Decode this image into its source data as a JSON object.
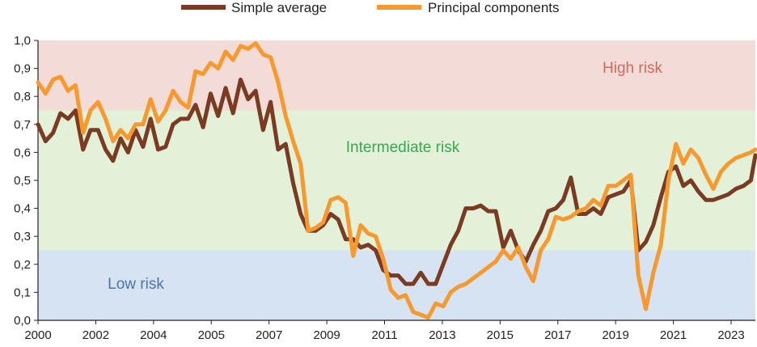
{
  "chart_data": {
    "type": "line",
    "title": "",
    "xlabel": "",
    "ylabel": "",
    "xlim": [
      2000,
      2023.9
    ],
    "ylim": [
      0,
      1
    ],
    "x_ticks": [
      "2000",
      "2002",
      "2004",
      "2005",
      "2007",
      "2009",
      "2011",
      "2013",
      "2015",
      "2017",
      "2019",
      "2021",
      "2023"
    ],
    "y_ticks": [
      "0,0",
      "0,1",
      "0,2",
      "0,3",
      "0,4",
      "0,5",
      "0,6",
      "0,7",
      "0,8",
      "0,9",
      "1,0"
    ],
    "grid": false,
    "legend_position": "top-center",
    "colors": {
      "simple_average": "#7a3b22",
      "principal_components": "#f7992f",
      "zone_low": "#d6e3f3",
      "zone_intermediate": "#e2f1d8",
      "zone_high": "#f3dcd7",
      "label_low": "#4f73a6",
      "label_intermediate": "#3aa84e",
      "label_high": "#cc6b5c",
      "axis": "#222222"
    },
    "zones": [
      {
        "name": "Low risk",
        "from": 0,
        "to": 0.25
      },
      {
        "name": "Intermediate risk",
        "from": 0.25,
        "to": 0.75
      },
      {
        "name": "High risk",
        "from": 0.75,
        "to": 1.0
      }
    ],
    "series": [
      {
        "name": "Simple average",
        "x": [
          2000.0,
          2000.25,
          2000.5,
          2000.75,
          2001.0,
          2001.25,
          2001.5,
          2001.75,
          2002.0,
          2002.25,
          2002.5,
          2002.75,
          2003.0,
          2003.25,
          2003.5,
          2003.75,
          2004.0,
          2004.25,
          2004.5,
          2004.75,
          2005.0,
          2005.25,
          2005.5,
          2005.75,
          2006.0,
          2006.25,
          2006.5,
          2006.75,
          2007.0,
          2007.25,
          2007.5,
          2007.75,
          2008.0,
          2008.25,
          2008.5,
          2008.75,
          2009.0,
          2009.25,
          2009.5,
          2009.75,
          2010.0,
          2010.25,
          2010.5,
          2010.75,
          2011.0,
          2011.25,
          2011.5,
          2011.75,
          2012.0,
          2012.25,
          2012.5,
          2012.75,
          2013.0,
          2013.25,
          2013.5,
          2013.75,
          2014.0,
          2014.25,
          2014.5,
          2014.75,
          2015.0,
          2015.25,
          2015.5,
          2015.75,
          2016.0,
          2016.25,
          2016.5,
          2016.75,
          2017.0,
          2017.25,
          2017.5,
          2017.75,
          2018.0,
          2018.25,
          2018.5,
          2018.75,
          2019.0,
          2019.25,
          2019.5,
          2019.75,
          2020.0,
          2020.25,
          2020.5,
          2020.75,
          2021.0,
          2021.25,
          2021.5,
          2021.75,
          2022.0,
          2022.25,
          2022.5,
          2022.75,
          2023.0,
          2023.25,
          2023.5,
          2023.75,
          2023.9
        ],
        "values": [
          0.7,
          0.64,
          0.67,
          0.74,
          0.72,
          0.75,
          0.61,
          0.68,
          0.68,
          0.61,
          0.57,
          0.65,
          0.6,
          0.68,
          0.62,
          0.72,
          0.61,
          0.62,
          0.7,
          0.72,
          0.72,
          0.77,
          0.69,
          0.81,
          0.73,
          0.83,
          0.74,
          0.86,
          0.79,
          0.82,
          0.68,
          0.78,
          0.61,
          0.63,
          0.49,
          0.38,
          0.32,
          0.32,
          0.34,
          0.38,
          0.36,
          0.29,
          0.29,
          0.26,
          0.27,
          0.25,
          0.18,
          0.16,
          0.16,
          0.13,
          0.13,
          0.17,
          0.13,
          0.13,
          0.2,
          0.27,
          0.32,
          0.4,
          0.4,
          0.41,
          0.39,
          0.39,
          0.26,
          0.32,
          0.25,
          0.21,
          0.27,
          0.32,
          0.39,
          0.4,
          0.43,
          0.51,
          0.38,
          0.38,
          0.4,
          0.38,
          0.44,
          0.45,
          0.46,
          0.5,
          0.25,
          0.28,
          0.34,
          0.44,
          0.53,
          0.55,
          0.48,
          0.5,
          0.46,
          0.43,
          0.43,
          0.44,
          0.45,
          0.47,
          0.48,
          0.5,
          0.59
        ]
      },
      {
        "name": "Principal components",
        "x": [
          2000.0,
          2000.25,
          2000.5,
          2000.75,
          2001.0,
          2001.25,
          2001.5,
          2001.75,
          2002.0,
          2002.25,
          2002.5,
          2002.75,
          2003.0,
          2003.25,
          2003.5,
          2003.75,
          2004.0,
          2004.25,
          2004.5,
          2004.75,
          2005.0,
          2005.25,
          2005.5,
          2005.75,
          2006.0,
          2006.25,
          2006.5,
          2006.75,
          2007.0,
          2007.25,
          2007.5,
          2007.75,
          2008.0,
          2008.25,
          2008.5,
          2008.75,
          2009.0,
          2009.25,
          2009.5,
          2009.75,
          2010.0,
          2010.25,
          2010.5,
          2010.75,
          2011.0,
          2011.25,
          2011.5,
          2011.75,
          2012.0,
          2012.25,
          2012.5,
          2012.75,
          2013.0,
          2013.25,
          2013.5,
          2013.75,
          2014.0,
          2014.25,
          2014.5,
          2014.75,
          2015.0,
          2015.25,
          2015.5,
          2015.75,
          2016.0,
          2016.25,
          2016.5,
          2016.75,
          2017.0,
          2017.25,
          2017.5,
          2017.75,
          2018.0,
          2018.25,
          2018.5,
          2018.75,
          2019.0,
          2019.25,
          2019.5,
          2019.75,
          2020.0,
          2020.25,
          2020.5,
          2020.75,
          2021.0,
          2021.25,
          2021.5,
          2021.75,
          2022.0,
          2022.25,
          2022.5,
          2022.75,
          2023.0,
          2023.25,
          2023.5,
          2023.75,
          2023.9
        ],
        "values": [
          0.85,
          0.81,
          0.86,
          0.87,
          0.82,
          0.84,
          0.67,
          0.75,
          0.78,
          0.72,
          0.64,
          0.68,
          0.65,
          0.7,
          0.7,
          0.79,
          0.71,
          0.75,
          0.82,
          0.78,
          0.76,
          0.89,
          0.88,
          0.92,
          0.9,
          0.96,
          0.93,
          0.98,
          0.97,
          0.99,
          0.95,
          0.94,
          0.85,
          0.73,
          0.64,
          0.56,
          0.32,
          0.33,
          0.35,
          0.43,
          0.44,
          0.42,
          0.23,
          0.34,
          0.31,
          0.3,
          0.22,
          0.11,
          0.08,
          0.09,
          0.03,
          0.02,
          0.01,
          0.06,
          0.05,
          0.1,
          0.12,
          0.13,
          0.15,
          0.17,
          0.19,
          0.21,
          0.25,
          0.22,
          0.26,
          0.19,
          0.14,
          0.25,
          0.29,
          0.37,
          0.36,
          0.37,
          0.39,
          0.4,
          0.43,
          0.41,
          0.48,
          0.48,
          0.5,
          0.52,
          0.16,
          0.04,
          0.17,
          0.27,
          0.5,
          0.63,
          0.56,
          0.61,
          0.58,
          0.52,
          0.47,
          0.53,
          0.56,
          0.58,
          0.59,
          0.6,
          0.61
        ]
      }
    ]
  }
}
